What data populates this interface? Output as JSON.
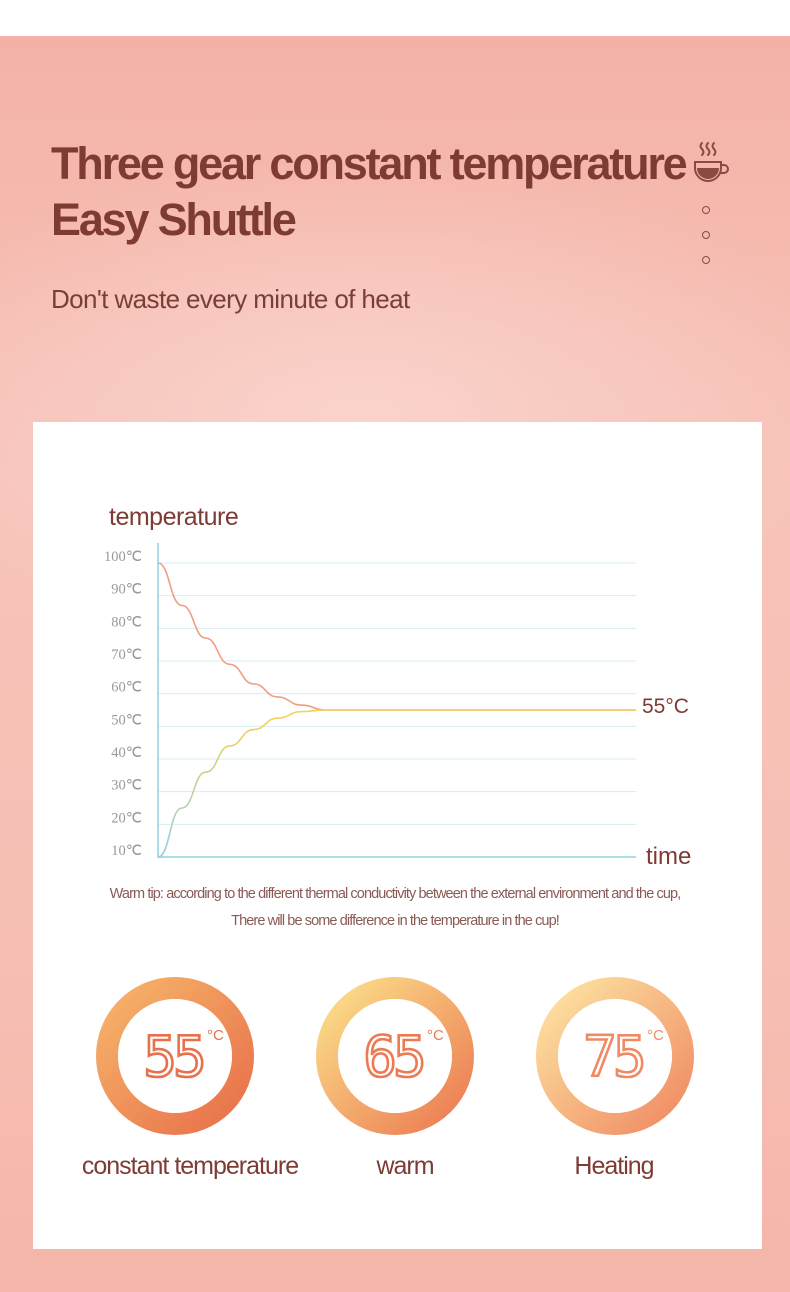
{
  "header": {
    "title_line1": "Three gear constant temperature",
    "title_line2": "Easy Shuttle",
    "subtitle": "Don't waste every minute of heat",
    "icon": "coffee-cup-icon",
    "nav_dots": 3
  },
  "chart_data": {
    "type": "line",
    "ylabel": "temperature",
    "xlabel": "time",
    "y_ticks": [
      "100℃",
      "90℃",
      "80℃",
      "70℃",
      "60℃",
      "50℃",
      "40℃",
      "30℃",
      "20℃",
      "10℃"
    ],
    "ylim": [
      10,
      100
    ],
    "grid": true,
    "series": [
      {
        "color": "#ee9e84",
        "x": [
          0,
          0.05,
          0.1,
          0.15,
          0.2,
          0.25,
          0.3,
          0.35,
          1
        ],
        "values": [
          100,
          87,
          77,
          69,
          63,
          59,
          56.5,
          55,
          55
        ]
      },
      {
        "color": "#f4d05a",
        "x": [
          0,
          0.05,
          0.1,
          0.15,
          0.2,
          0.25,
          0.3,
          0.35,
          1
        ],
        "values": [
          10,
          25,
          36,
          44,
          49,
          52.5,
          54.5,
          55,
          55
        ]
      }
    ],
    "annotation": "55°C",
    "colors": {
      "axis": "#8fd3e0",
      "grid": "#d4eef3",
      "tick_text": "#999999",
      "label": "#7e3b34"
    }
  },
  "warm_tip": {
    "line1": "Warm tip: according to the different thermal conductivity between the external environment and the cup,",
    "line2": "There will be some difference in the temperature in the cup!"
  },
  "modes": [
    {
      "value": "55",
      "unit": "°C",
      "label": "constant temperature",
      "ring_colors": [
        "#f6b46a",
        "#e8704a"
      ]
    },
    {
      "value": "65",
      "unit": "°C",
      "label": "warm",
      "ring_colors": [
        "#fbe08a",
        "#ec7a52"
      ]
    },
    {
      "value": "75",
      "unit": "°C",
      "label": "Heating",
      "ring_colors": [
        "#fde4a2",
        "#f08a62"
      ]
    }
  ]
}
